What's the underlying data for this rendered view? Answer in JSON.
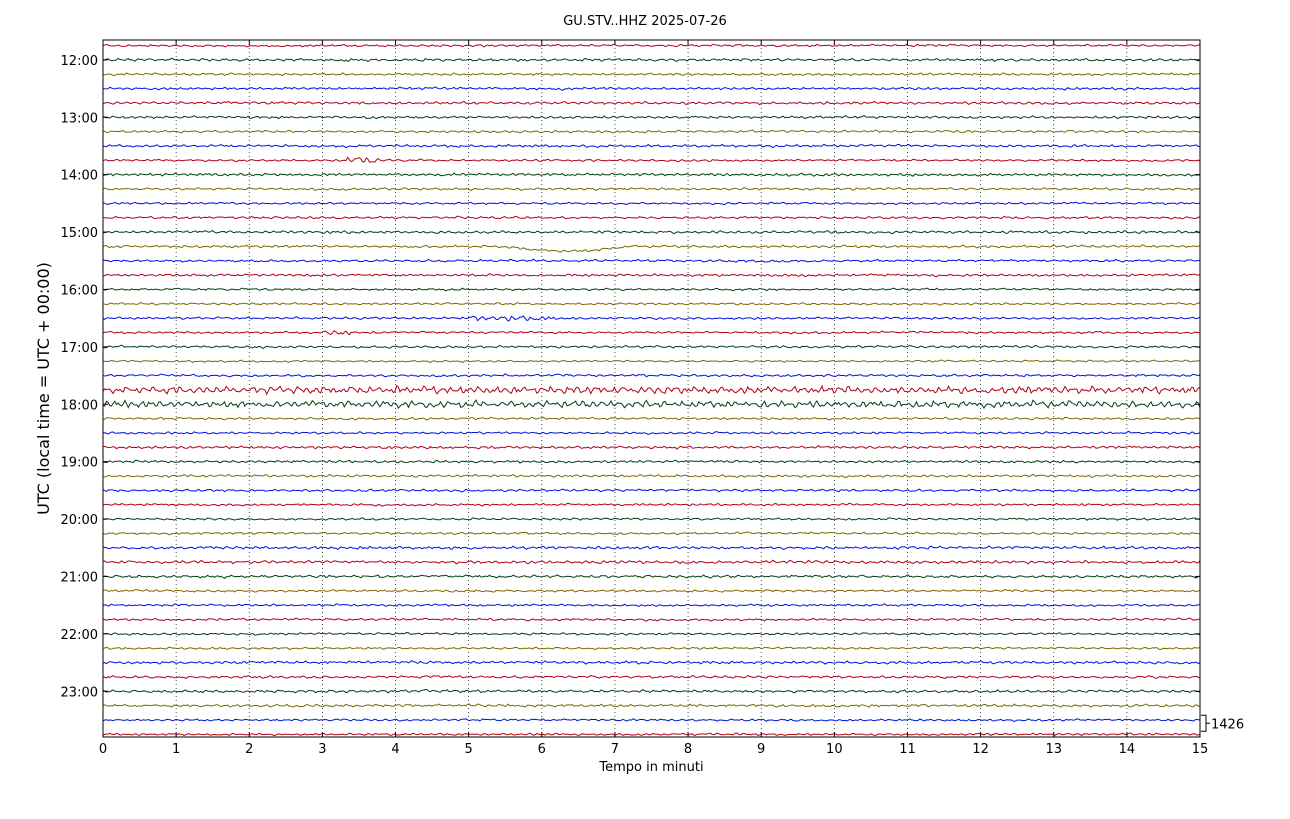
{
  "chart_data": {
    "type": "line",
    "title": "GU.STV..HHZ 2025-07-26",
    "xlabel": "Tempo in minuti",
    "ylabel": "UTC (local time = UTC + 00:00)",
    "xlim": [
      0,
      15
    ],
    "x_ticks": [
      "0",
      "1",
      "2",
      "3",
      "4",
      "5",
      "6",
      "7",
      "8",
      "9",
      "10",
      "11",
      "12",
      "13",
      "14",
      "15"
    ],
    "y_tick_labels": [
      "12:00",
      "13:00",
      "14:00",
      "15:00",
      "16:00",
      "17:00",
      "18:00",
      "19:00",
      "20:00",
      "21:00",
      "22:00",
      "23:00"
    ],
    "trace_start_time": "11:45",
    "trace_interval_minutes": 15,
    "trace_count": 49,
    "trace_colors": [
      "#b00018",
      "#004010",
      "#7a6a00",
      "#0010e0"
    ],
    "scale_label": "1426",
    "grid": "vertical dotted",
    "notable_activity": [
      {
        "hour": "13:45",
        "minute_range": [
          3.3,
          3.8
        ],
        "amplitude": "high"
      },
      {
        "hour": "15:15",
        "minute_range": [
          5.5,
          7.2
        ],
        "amplitude": "long-period"
      },
      {
        "hour": "16:30",
        "minute_range": [
          5.0,
          6.2
        ],
        "amplitude": "moderate"
      },
      {
        "hour": "16:45",
        "minute_range": [
          3.0,
          3.4
        ],
        "amplitude": "moderate"
      },
      {
        "hour": "17:45",
        "minute_range": [
          0,
          15
        ],
        "amplitude": "elevated"
      },
      {
        "hour": "18:00",
        "minute_range": [
          0,
          15
        ],
        "amplitude": "elevated"
      }
    ]
  }
}
